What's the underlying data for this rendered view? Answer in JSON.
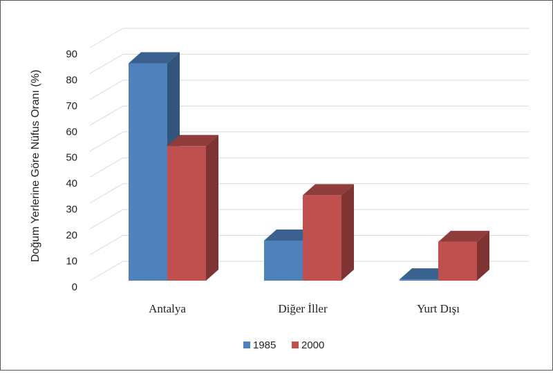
{
  "chart_data": {
    "type": "bar3d",
    "y_label": "Doğum Yerlerine Göre Nüfus Oranı (%)",
    "categories": [
      "Antalya",
      "Diğer İller",
      "Yurt Dışı"
    ],
    "series": [
      {
        "name": "1985",
        "color": "#4f81bd",
        "values": [
          84,
          15.5,
          0.5
        ]
      },
      {
        "name": "2000",
        "color": "#c0504d",
        "values": [
          52,
          33,
          15
        ]
      }
    ],
    "ylim": [
      0,
      90
    ],
    "yticks": [
      0,
      10,
      20,
      30,
      40,
      50,
      60,
      70,
      80,
      90
    ],
    "grid": true,
    "legend": "bottom"
  }
}
